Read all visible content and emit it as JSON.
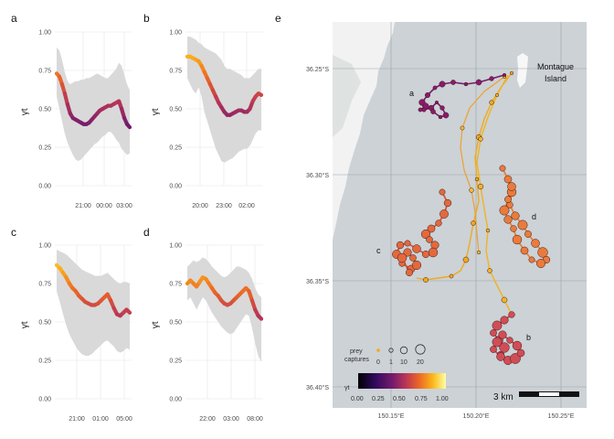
{
  "panels": [
    {
      "label": "a",
      "ylabel": "γt",
      "xticks": [
        "21:00",
        "00:00",
        "03:00"
      ],
      "yticks": [
        "0.00",
        "0.25",
        "0.50",
        "0.75",
        "1.00"
      ],
      "ylim": [
        0,
        1
      ],
      "gamma": [
        0.73,
        0.71,
        0.66,
        0.6,
        0.53,
        0.47,
        0.44,
        0.43,
        0.42,
        0.41,
        0.4,
        0.4,
        0.41,
        0.43,
        0.45,
        0.47,
        0.49,
        0.5,
        0.51,
        0.52,
        0.52,
        0.53,
        0.54,
        0.55,
        0.5,
        0.44,
        0.4,
        0.38
      ],
      "upper": [
        0.9,
        0.88,
        0.82,
        0.74,
        0.68,
        0.66,
        0.67,
        0.68,
        0.68,
        0.69,
        0.69,
        0.7,
        0.7,
        0.71,
        0.72,
        0.73,
        0.72,
        0.71,
        0.7,
        0.7,
        0.72,
        0.74,
        0.76,
        0.8,
        0.78,
        0.72,
        0.66,
        0.62
      ],
      "lower": [
        0.58,
        0.5,
        0.42,
        0.34,
        0.28,
        0.24,
        0.2,
        0.17,
        0.16,
        0.17,
        0.19,
        0.21,
        0.23,
        0.25,
        0.27,
        0.28,
        0.3,
        0.32,
        0.33,
        0.35,
        0.35,
        0.33,
        0.3,
        0.28,
        0.24,
        0.22,
        0.2,
        0.21
      ]
    },
    {
      "label": "b",
      "ylabel": "γt",
      "xticks": [
        "20:00",
        "23:00",
        "02:00"
      ],
      "yticks": [
        "0.00",
        "0.25",
        "0.50",
        "0.75",
        "1.00"
      ],
      "ylim": [
        0,
        1
      ],
      "gamma": [
        0.84,
        0.84,
        0.83,
        0.82,
        0.81,
        0.78,
        0.74,
        0.7,
        0.66,
        0.62,
        0.58,
        0.54,
        0.51,
        0.48,
        0.46,
        0.46,
        0.47,
        0.48,
        0.49,
        0.49,
        0.48,
        0.48,
        0.5,
        0.55,
        0.58,
        0.6,
        0.59
      ],
      "upper": [
        0.97,
        0.97,
        0.96,
        0.95,
        0.93,
        0.92,
        0.9,
        0.89,
        0.88,
        0.87,
        0.86,
        0.84,
        0.82,
        0.78,
        0.76,
        0.76,
        0.75,
        0.74,
        0.73,
        0.72,
        0.7,
        0.7,
        0.7,
        0.72,
        0.74,
        0.76,
        0.76
      ],
      "lower": [
        0.7,
        0.66,
        0.62,
        0.6,
        0.64,
        0.58,
        0.48,
        0.42,
        0.36,
        0.3,
        0.24,
        0.2,
        0.16,
        0.15,
        0.16,
        0.17,
        0.18,
        0.2,
        0.22,
        0.23,
        0.24,
        0.24,
        0.26,
        0.3,
        0.34,
        0.36,
        0.36
      ]
    },
    {
      "label": "c",
      "ylabel": "γt",
      "xticks": [
        "21:00",
        "01:00",
        "05:00"
      ],
      "yticks": [
        "0.00",
        "0.25",
        "0.50",
        "0.75",
        "1.00"
      ],
      "ylim": [
        0,
        1
      ],
      "gamma": [
        0.87,
        0.85,
        0.82,
        0.79,
        0.75,
        0.72,
        0.7,
        0.67,
        0.65,
        0.63,
        0.62,
        0.61,
        0.61,
        0.62,
        0.64,
        0.66,
        0.68,
        0.64,
        0.59,
        0.55,
        0.54,
        0.56,
        0.58,
        0.56
      ],
      "upper": [
        0.97,
        0.96,
        0.95,
        0.94,
        0.92,
        0.9,
        0.88,
        0.86,
        0.84,
        0.83,
        0.82,
        0.81,
        0.8,
        0.8,
        0.8,
        0.81,
        0.82,
        0.8,
        0.78,
        0.76,
        0.75,
        0.76,
        0.76,
        0.75
      ],
      "lower": [
        0.7,
        0.63,
        0.55,
        0.48,
        0.42,
        0.38,
        0.34,
        0.31,
        0.29,
        0.28,
        0.28,
        0.29,
        0.31,
        0.33,
        0.35,
        0.37,
        0.38,
        0.36,
        0.34,
        0.31,
        0.3,
        0.31,
        0.33,
        0.32
      ]
    },
    {
      "label": "d",
      "ylabel": "γt",
      "xticks": [
        "22:00",
        "03:00",
        "08:00"
      ],
      "yticks": [
        "0.00",
        "0.25",
        "0.50",
        "0.75",
        "1.00"
      ],
      "ylim": [
        0,
        1
      ],
      "gamma": [
        0.75,
        0.77,
        0.75,
        0.73,
        0.76,
        0.79,
        0.78,
        0.75,
        0.72,
        0.69,
        0.67,
        0.64,
        0.62,
        0.61,
        0.62,
        0.64,
        0.66,
        0.68,
        0.7,
        0.72,
        0.7,
        0.64,
        0.58,
        0.54,
        0.52
      ],
      "upper": [
        0.86,
        0.88,
        0.9,
        0.89,
        0.9,
        0.92,
        0.91,
        0.89,
        0.86,
        0.84,
        0.82,
        0.8,
        0.79,
        0.8,
        0.82,
        0.84,
        0.86,
        0.86,
        0.85,
        0.84,
        0.82,
        0.78,
        0.72,
        0.68,
        0.66
      ],
      "lower": [
        0.64,
        0.66,
        0.62,
        0.58,
        0.62,
        0.66,
        0.64,
        0.6,
        0.56,
        0.53,
        0.5,
        0.47,
        0.45,
        0.43,
        0.42,
        0.43,
        0.46,
        0.49,
        0.52,
        0.55,
        0.54,
        0.46,
        0.36,
        0.28,
        0.24
      ]
    }
  ],
  "map": {
    "label": "e",
    "lat_ticks": [
      "36.25°S",
      "36.30°S",
      "36.35°S",
      "36.40°S"
    ],
    "lon_ticks": [
      "150.15°E",
      "150.20°E",
      "150.25°E"
    ],
    "island_label": [
      "Montague",
      "Island"
    ],
    "track_labels": [
      "a",
      "b",
      "c",
      "d"
    ],
    "prey_title": [
      "prey",
      "captures"
    ],
    "prey_values": [
      "0",
      "1",
      "10",
      "20"
    ],
    "gamma_legend_title": "γt",
    "gamma_legend_ticks": [
      "0.00",
      "0.25",
      "0.50",
      "0.75",
      "1.00"
    ],
    "scale_label": "3 km",
    "colors": {
      "land": "#f2f2f2",
      "water": "#ccd2d6",
      "grid": "#b3b3b3",
      "track_a": "#8b1a6b",
      "track_b": "#d94f3f",
      "track_c": "#e3693d",
      "track_d": "#e8803a"
    }
  }
}
